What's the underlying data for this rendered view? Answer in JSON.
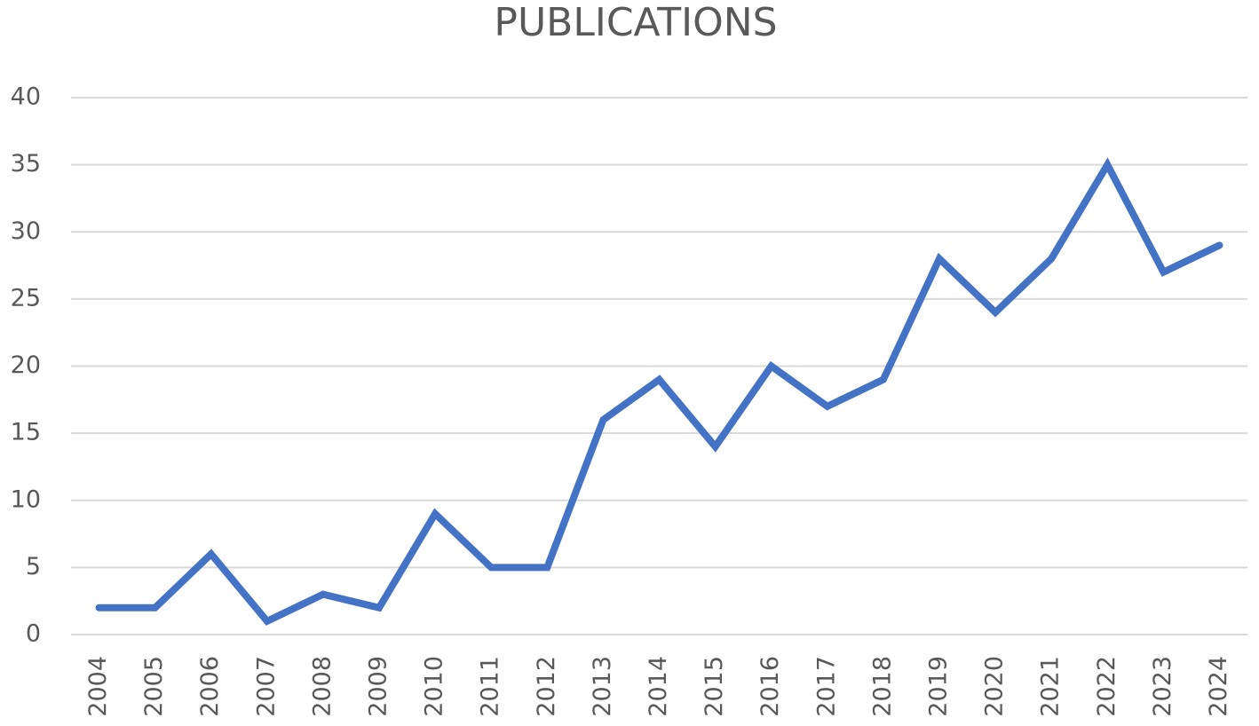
{
  "chart_data": {
    "type": "line",
    "title": "PUBLICATIONS",
    "categories": [
      "2004",
      "2005",
      "2006",
      "2007",
      "2008",
      "2009",
      "2010",
      "2011",
      "2012",
      "2013",
      "2014",
      "2015",
      "2016",
      "2017",
      "2018",
      "2019",
      "2020",
      "2021",
      "2022",
      "2023",
      "2024"
    ],
    "values": [
      2,
      2,
      6,
      1,
      3,
      2,
      9,
      5,
      5,
      16,
      19,
      14,
      20,
      17,
      19,
      28,
      24,
      28,
      35,
      27,
      29
    ],
    "color": "#4472c4",
    "ylim": [
      0,
      40
    ],
    "yticks": [
      0,
      5,
      10,
      15,
      20,
      25,
      30,
      35,
      40
    ],
    "grid": true
  }
}
